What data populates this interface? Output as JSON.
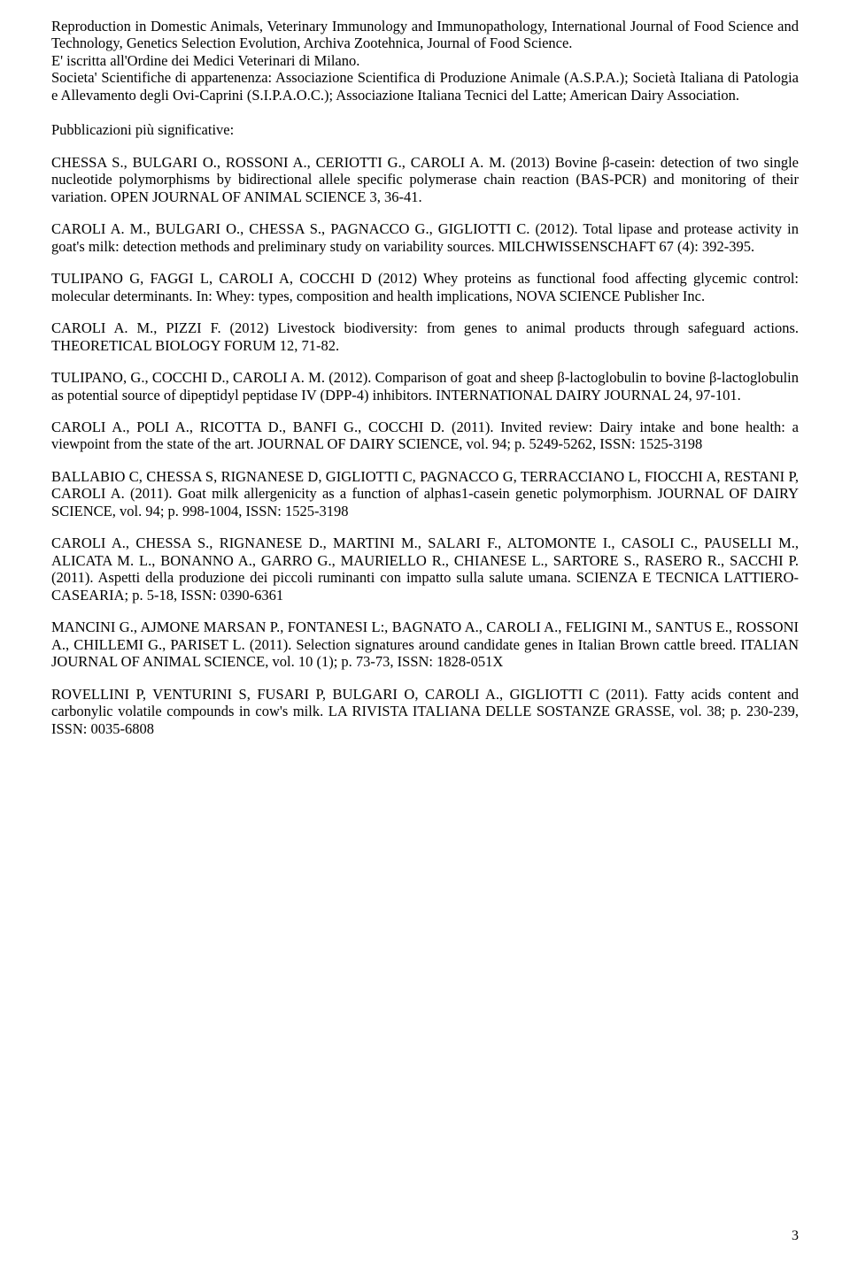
{
  "intro": {
    "p1": "Reproduction in Domestic Animals, Veterinary Immunology and Immunopathology, International Journal of Food Science and Technology, Genetics Selection Evolution, Archiva Zootehnica, Journal of Food Science.",
    "p2": "E' iscritta all'Ordine dei Medici Veterinari di Milano.",
    "p3": "Societa' Scientifiche di appartenenza: Associazione Scientifica di Produzione Animale (A.S.P.A.); Società Italiana di Patologia e Allevamento degli Ovi-Caprini (S.I.P.A.O.C.); Associazione Italiana Tecnici del Latte; American Dairy Association."
  },
  "section_heading": "Pubblicazioni più significative:",
  "publications": [
    "CHESSA S., BULGARI O., ROSSONI A., CERIOTTI G., CAROLI A. M. (2013) Bovine β-casein: detection of two single nucleotide polymorphisms by bidirectional allele specific polymerase chain reaction (BAS-PCR) and monitoring of their variation. OPEN JOURNAL OF ANIMAL SCIENCE 3, 36-41.",
    "CAROLI A. M., BULGARI O., CHESSA S., PAGNACCO G., GIGLIOTTI C. (2012). Total lipase and protease activity in goat's milk: detection methods and preliminary study on variability sources. MILCHWISSENSCHAFT 67 (4): 392-395.",
    "TULIPANO G, FAGGI L, CAROLI A, COCCHI D (2012) Whey proteins as functional food affecting glycemic control: molecular determinants. In: Whey: types, composition and health implications, NOVA SCIENCE Publisher Inc.",
    "CAROLI A. M.,  PIZZI F. (2012) Livestock biodiversity: from genes to animal products through safeguard actions. THEORETICAL BIOLOGY FORUM 12, 71-82.",
    "TULIPANO, G., COCCHI D., CAROLI A. M. (2012). Comparison of goat and sheep β-lactoglobulin to bovine β-lactoglobulin as potential source of dipeptidyl peptidase IV (DPP-4) inhibitors. INTERNATIONAL DAIRY JOURNAL 24, 97-101.",
    "CAROLI A., POLI A., RICOTTA D., BANFI G., COCCHI D. (2011). Invited review: Dairy intake and bone health: a viewpoint from the state of the art. JOURNAL OF DAIRY SCIENCE, vol. 94; p. 5249-5262, ISSN: 1525-3198",
    "BALLABIO C, CHESSA S, RIGNANESE D, GIGLIOTTI C, PAGNACCO G, TERRACCIANO L, FIOCCHI A, RESTANI P, CAROLI A. (2011). Goat milk allergenicity as a function of alphas1-casein genetic polymorphism. JOURNAL OF DAIRY SCIENCE, vol. 94; p. 998-1004, ISSN: 1525-3198",
    "CAROLI A., CHESSA S., RIGNANESE D., MARTINI M., SALARI F., ALTOMONTE I., CASOLI C., PAUSELLI M., ALICATA M. L., BONANNO A., GARRO G., MAURIELLO R., CHIANESE L., SARTORE S., RASERO R., SACCHI P. (2011). Aspetti della produzione dei piccoli ruminanti con impatto sulla salute umana. SCIENZA E TECNICA LATTIERO-CASEARIA; p. 5-18, ISSN: 0390-6361",
    "MANCINI G., AJMONE MARSAN P., FONTANESI L:, BAGNATO A., CAROLI A., FELIGINI M., SANTUS E., ROSSONI A., CHILLEMI G., PARISET L. (2011). Selection signatures around candidate genes in Italian Brown cattle breed. ITALIAN JOURNAL OF ANIMAL SCIENCE, vol. 10 (1); p. 73-73, ISSN: 1828-051X",
    "ROVELLINI P, VENTURINI S, FUSARI P, BULGARI O, CAROLI A., GIGLIOTTI C (2011). Fatty acids content and carbonylic volatile compounds in cow's milk. LA RIVISTA ITALIANA DELLE SOSTANZE GRASSE, vol. 38; p. 230-239, ISSN: 0035-6808"
  ],
  "page_number": "3"
}
